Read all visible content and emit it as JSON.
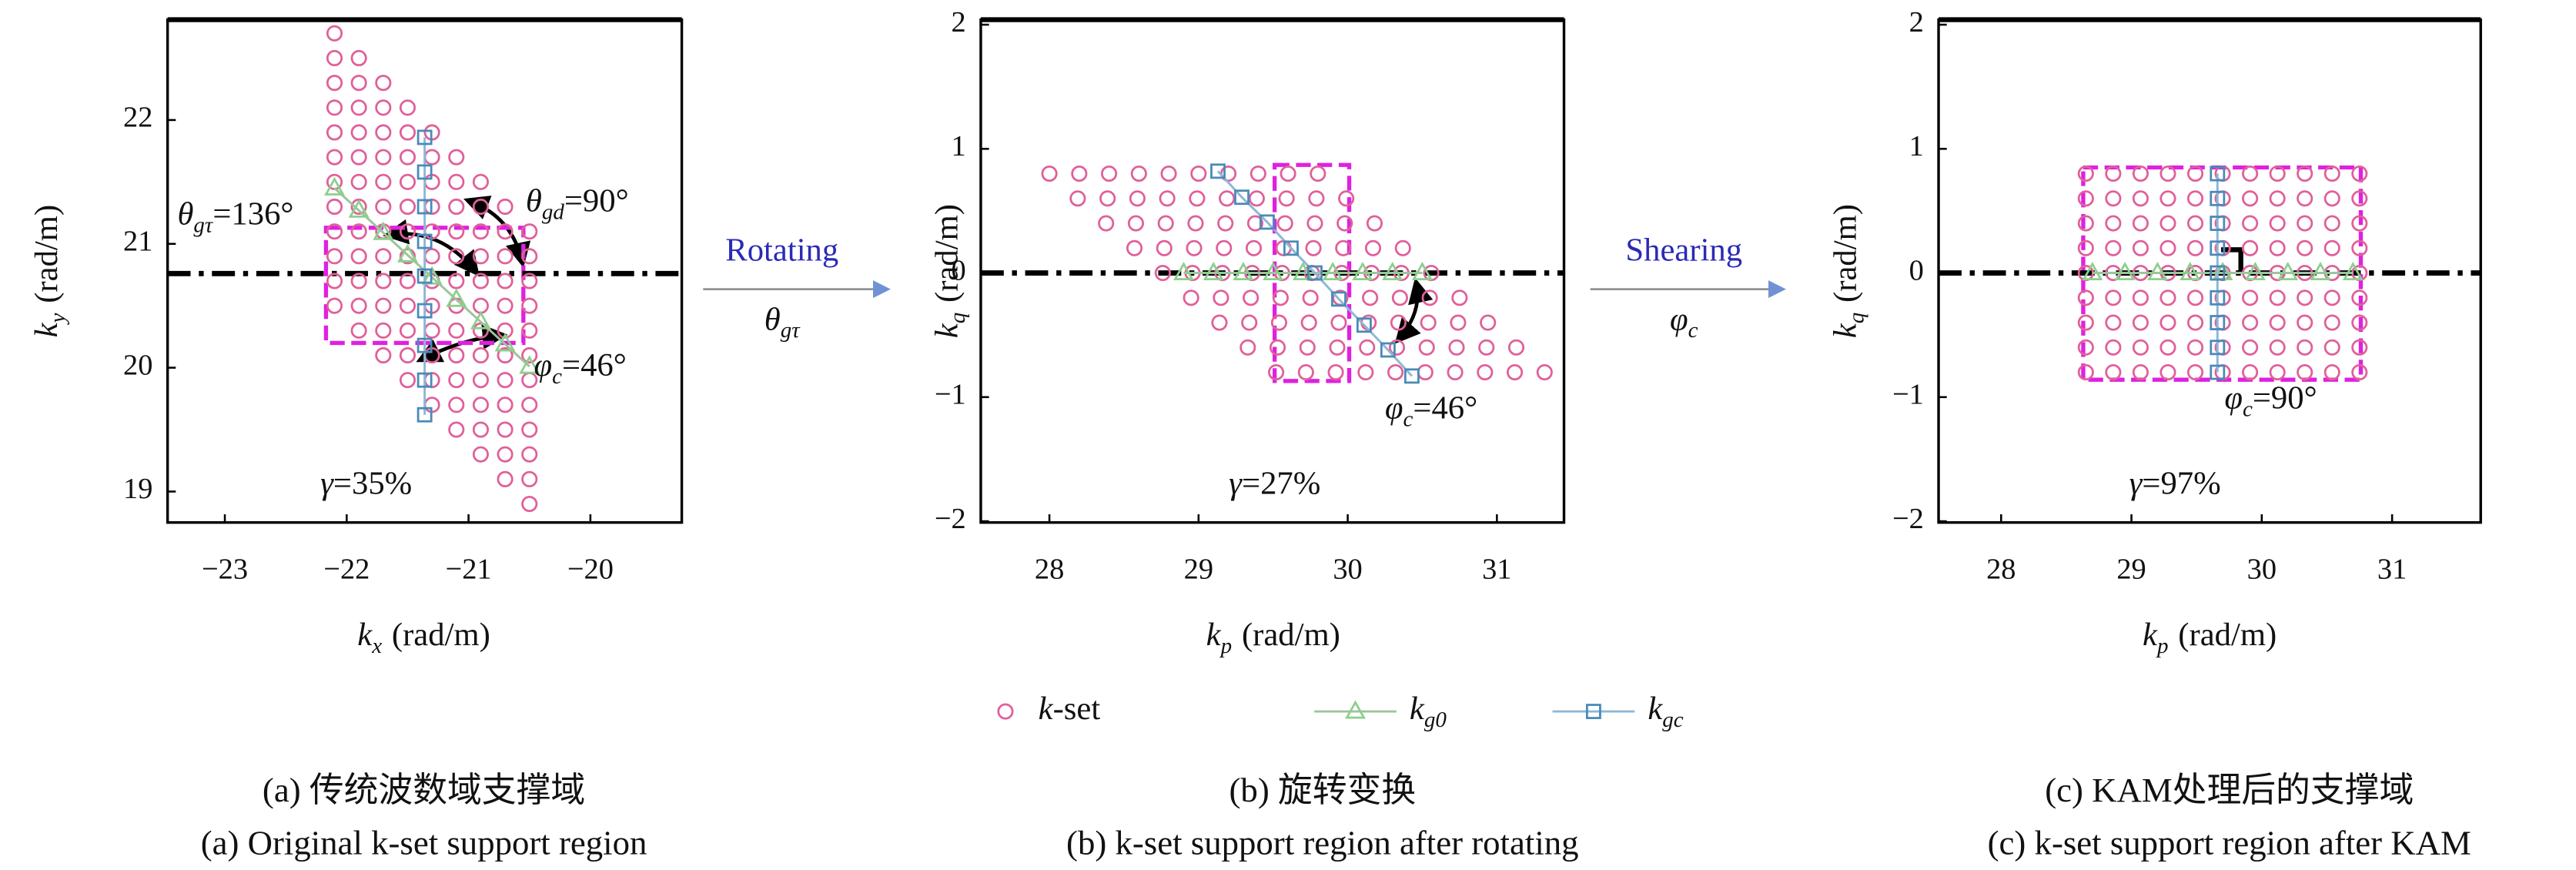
{
  "chart_data": [
    {
      "type": "scatter",
      "xlim": [
        -23.47,
        -19.25
      ],
      "ylim": [
        18.75,
        22.81
      ],
      "xticks": [
        {
          "value": -23,
          "label": "−23"
        },
        {
          "value": -22,
          "label": "−22"
        },
        {
          "value": -21,
          "label": "−21"
        },
        {
          "value": -20,
          "label": "−20"
        }
      ],
      "yticks": [
        19,
        20,
        21,
        22
      ],
      "xlabel": {
        "symbol": "k",
        "sub": "x",
        "text": "(rad/m)"
      },
      "ylabel": {
        "symbol": "k",
        "sub": "y",
        "text": "(rad/m)"
      },
      "reference_line": 20.76,
      "support_box": {
        "x": [
          -22.17,
          -20.55
        ],
        "y": [
          20.2,
          21.13
        ],
        "color": "#e020e0"
      },
      "annotations": [
        {
          "symbol": "θ",
          "sub": "gτ",
          "text": "=136°"
        },
        {
          "symbol": "θ",
          "sub": "gd",
          "text": "=90°"
        },
        {
          "symbol": "φ",
          "sub": "c",
          "text": "=46°"
        },
        {
          "symbol": "γ",
          "text": "=35%"
        }
      ],
      "series": [
        {
          "name": {
            "symbol": "k",
            "text": "-set"
          },
          "marker": "circle",
          "color": "#e0609a",
          "x": [
            -22.1,
            -22.1,
            -22.1,
            -22.1,
            -22.1,
            -22.1,
            -22.1,
            -22.1,
            -22.1,
            -22.1,
            -22.1,
            -22.1,
            -21.9,
            -21.9,
            -21.9,
            -21.9,
            -21.9,
            -21.9,
            -21.9,
            -21.9,
            -21.9,
            -21.9,
            -21.9,
            -21.9,
            -21.7,
            -21.7,
            -21.7,
            -21.7,
            -21.7,
            -21.7,
            -21.7,
            -21.7,
            -21.7,
            -21.7,
            -21.7,
            -21.7,
            -21.5,
            -21.5,
            -21.5,
            -21.5,
            -21.5,
            -21.5,
            -21.5,
            -21.5,
            -21.5,
            -21.5,
            -21.5,
            -21.5,
            -21.3,
            -21.3,
            -21.3,
            -21.3,
            -21.3,
            -21.3,
            -21.3,
            -21.3,
            -21.3,
            -21.3,
            -21.3,
            -21.3,
            -21.1,
            -21.1,
            -21.1,
            -21.1,
            -21.1,
            -21.1,
            -21.1,
            -21.1,
            -21.1,
            -21.1,
            -21.1,
            -21.1,
            -20.9,
            -20.9,
            -20.9,
            -20.9,
            -20.9,
            -20.9,
            -20.9,
            -20.9,
            -20.9,
            -20.9,
            -20.9,
            -20.9,
            -20.7,
            -20.7,
            -20.7,
            -20.7,
            -20.7,
            -20.7,
            -20.7,
            -20.7,
            -20.7,
            -20.7,
            -20.7,
            -20.7,
            -20.5,
            -20.5,
            -20.5,
            -20.5,
            -20.5,
            -20.5,
            -20.5,
            -20.5,
            -20.5,
            -20.5,
            -20.5,
            -20.5
          ],
          "values": [
            22.7,
            22.5,
            22.3,
            22.1,
            21.9,
            21.7,
            21.5,
            21.3,
            21.1,
            20.9,
            20.7,
            20.5,
            22.5,
            22.3,
            22.1,
            21.9,
            21.7,
            21.5,
            21.3,
            21.1,
            20.9,
            20.7,
            20.5,
            20.3,
            22.3,
            22.1,
            21.9,
            21.7,
            21.5,
            21.3,
            21.1,
            20.9,
            20.7,
            20.5,
            20.3,
            20.1,
            22.1,
            21.9,
            21.7,
            21.5,
            21.3,
            21.1,
            20.9,
            20.7,
            20.5,
            20.3,
            20.1,
            19.9,
            21.9,
            21.7,
            21.5,
            21.3,
            21.1,
            20.9,
            20.7,
            20.5,
            20.3,
            20.1,
            19.9,
            19.7,
            21.7,
            21.5,
            21.3,
            21.1,
            20.9,
            20.7,
            20.5,
            20.3,
            20.1,
            19.9,
            19.7,
            19.5,
            21.5,
            21.3,
            21.1,
            20.9,
            20.7,
            20.5,
            20.3,
            20.1,
            19.9,
            19.7,
            19.5,
            19.3,
            21.3,
            21.1,
            20.9,
            20.7,
            20.5,
            20.3,
            20.1,
            19.9,
            19.7,
            19.5,
            19.3,
            19.1,
            21.1,
            20.9,
            20.7,
            20.5,
            20.3,
            20.1,
            19.9,
            19.7,
            19.5,
            19.3,
            19.1,
            18.9
          ]
        },
        {
          "name": {
            "symbol": "k",
            "sub": "g0"
          },
          "marker": "triangle",
          "color": "#8ccf8c",
          "line_color": "#9cc49c",
          "x": [
            -22.1,
            -21.9,
            -21.7,
            -21.5,
            -21.3,
            -21.1,
            -20.9,
            -20.7,
            -20.5
          ],
          "values": [
            21.45,
            21.27,
            21.09,
            20.91,
            20.73,
            20.55,
            20.37,
            20.19,
            20.01
          ]
        },
        {
          "name": {
            "symbol": "k",
            "sub": "gc"
          },
          "marker": "square",
          "color": "#4a8ab8",
          "line_color": "#8db8d8",
          "x": [
            -21.36,
            -21.36,
            -21.36,
            -21.36,
            -21.36,
            -21.36,
            -21.36,
            -21.36,
            -21.36
          ],
          "values": [
            21.86,
            21.58,
            21.3,
            21.02,
            20.74,
            20.46,
            20.18,
            19.9,
            19.62
          ]
        }
      ]
    },
    {
      "type": "scatter",
      "xlim": [
        27.54,
        31.45
      ],
      "ylim": [
        -2.01,
        2.04
      ],
      "xticks": [
        28,
        29,
        30,
        31
      ],
      "yticks": [
        {
          "value": -2,
          "label": "−2"
        },
        {
          "value": -1,
          "label": "−1"
        },
        0,
        1,
        2
      ],
      "xlabel": {
        "symbol": "k",
        "sub": "p",
        "text": "(rad/m)"
      },
      "ylabel": {
        "symbol": "k",
        "sub": "q",
        "text": "(rad/m)"
      },
      "reference_line": 0,
      "support_box": {
        "x": [
          29.51,
          30.01
        ],
        "y": [
          -0.87,
          0.87
        ],
        "color": "#e020e0"
      },
      "annotations": [
        {
          "symbol": "φ",
          "sub": "c",
          "text": "=46°"
        },
        {
          "symbol": "γ",
          "text": "=27%"
        }
      ],
      "series": [
        {
          "marker": "circle",
          "color": "#e0609a",
          "x": [
            28.0,
            28.2,
            28.4,
            28.6,
            28.8,
            29.0,
            29.2,
            29.4,
            29.6,
            29.8,
            28.19,
            28.39,
            28.59,
            28.79,
            28.99,
            29.19,
            29.39,
            29.59,
            29.79,
            29.99,
            28.38,
            28.58,
            28.78,
            28.98,
            29.18,
            29.38,
            29.58,
            29.78,
            29.98,
            30.18,
            28.57,
            28.77,
            28.97,
            29.17,
            29.37,
            29.57,
            29.77,
            29.97,
            30.17,
            30.37,
            28.76,
            28.96,
            29.16,
            29.36,
            29.56,
            29.76,
            29.96,
            30.16,
            30.36,
            30.56,
            28.95,
            29.15,
            29.35,
            29.55,
            29.75,
            29.95,
            30.15,
            30.35,
            30.55,
            30.75,
            29.14,
            29.34,
            29.54,
            29.74,
            29.94,
            30.14,
            30.34,
            30.54,
            30.74,
            30.94,
            29.33,
            29.53,
            29.73,
            29.93,
            30.13,
            30.33,
            30.53,
            30.73,
            30.93,
            31.13,
            29.52,
            29.72,
            29.92,
            30.12,
            30.32,
            30.52,
            30.72,
            30.92,
            31.12,
            31.32
          ],
          "values": [
            0.8,
            0.8,
            0.8,
            0.8,
            0.8,
            0.8,
            0.8,
            0.8,
            0.8,
            0.8,
            0.6,
            0.6,
            0.6,
            0.6,
            0.6,
            0.6,
            0.6,
            0.6,
            0.6,
            0.6,
            0.4,
            0.4,
            0.4,
            0.4,
            0.4,
            0.4,
            0.4,
            0.4,
            0.4,
            0.4,
            0.2,
            0.2,
            0.2,
            0.2,
            0.2,
            0.2,
            0.2,
            0.2,
            0.2,
            0.2,
            0,
            0,
            0,
            0,
            0,
            0,
            0,
            0,
            0,
            0,
            -0.2,
            -0.2,
            -0.2,
            -0.2,
            -0.2,
            -0.2,
            -0.2,
            -0.2,
            -0.2,
            -0.2,
            -0.4,
            -0.4,
            -0.4,
            -0.4,
            -0.4,
            -0.4,
            -0.4,
            -0.4,
            -0.4,
            -0.4,
            -0.6,
            -0.6,
            -0.6,
            -0.6,
            -0.6,
            -0.6,
            -0.6,
            -0.6,
            -0.6,
            -0.6,
            -0.8,
            -0.8,
            -0.8,
            -0.8,
            -0.8,
            -0.8,
            -0.8,
            -0.8,
            -0.8,
            -0.8
          ]
        },
        {
          "marker": "triangle",
          "color": "#8ccf8c",
          "line_color": "#9cc49c",
          "x": [
            28.9,
            29.1,
            29.3,
            29.5,
            29.7,
            29.9,
            30.1,
            30.3,
            30.5
          ],
          "values": [
            0,
            0,
            0,
            0,
            0,
            0,
            0,
            0,
            0
          ]
        },
        {
          "marker": "square",
          "color": "#4a8ab8",
          "line_color": "#8db8d8",
          "x": [
            29.13,
            29.29,
            29.46,
            29.62,
            29.78,
            29.94,
            30.11,
            30.27,
            30.43
          ],
          "values": [
            0.82,
            0.61,
            0.41,
            0.2,
            0,
            -0.21,
            -0.42,
            -0.62,
            -0.83
          ]
        }
      ]
    },
    {
      "type": "scatter",
      "xlim": [
        27.52,
        31.68
      ],
      "ylim": [
        -2.01,
        2.04
      ],
      "xticks": [
        28,
        29,
        30,
        31
      ],
      "yticks": [
        {
          "value": -2,
          "label": "−2"
        },
        {
          "value": -1,
          "label": "−1"
        },
        0,
        1,
        2
      ],
      "xlabel": {
        "symbol": "k",
        "sub": "p",
        "text": "(rad/m)"
      },
      "ylabel": {
        "symbol": "k",
        "sub": "q",
        "text": "(rad/m)"
      },
      "reference_line": 0,
      "support_box": {
        "x": [
          28.63,
          30.76
        ],
        "y": [
          -0.86,
          0.85
        ],
        "color": "#e020e0"
      },
      "annotations": [
        {
          "symbol": "φ",
          "sub": "c",
          "text": "=90°"
        },
        {
          "symbol": "γ",
          "text": "=97%"
        }
      ],
      "series": [
        {
          "marker": "circle",
          "color": "#e0609a",
          "x": [
            28.65,
            28.86,
            29.07,
            29.28,
            29.49,
            29.7,
            29.91,
            30.12,
            30.33,
            30.54,
            30.75,
            28.65,
            28.86,
            29.07,
            29.28,
            29.49,
            29.7,
            29.91,
            30.12,
            30.33,
            30.54,
            30.75,
            28.65,
            28.86,
            29.07,
            29.28,
            29.49,
            29.7,
            29.91,
            30.12,
            30.33,
            30.54,
            30.75,
            28.65,
            28.86,
            29.07,
            29.28,
            29.49,
            29.7,
            29.91,
            30.12,
            30.33,
            30.54,
            30.75,
            28.65,
            28.86,
            29.07,
            29.28,
            29.49,
            29.7,
            29.91,
            30.12,
            30.33,
            30.54,
            30.75,
            28.65,
            28.86,
            29.07,
            29.28,
            29.49,
            29.7,
            29.91,
            30.12,
            30.33,
            30.54,
            30.75,
            28.65,
            28.86,
            29.07,
            29.28,
            29.49,
            29.7,
            29.91,
            30.12,
            30.33,
            30.54,
            30.75,
            28.65,
            28.86,
            29.07,
            29.28,
            29.49,
            29.7,
            29.91,
            30.12,
            30.33,
            30.54,
            30.75,
            28.65,
            28.86,
            29.07,
            29.28,
            29.49,
            29.7,
            29.91,
            30.12,
            30.33,
            30.54,
            30.75
          ],
          "values": [
            0.8,
            0.8,
            0.8,
            0.8,
            0.8,
            0.8,
            0.8,
            0.8,
            0.8,
            0.8,
            0.8,
            0.6,
            0.6,
            0.6,
            0.6,
            0.6,
            0.6,
            0.6,
            0.6,
            0.6,
            0.6,
            0.6,
            0.4,
            0.4,
            0.4,
            0.4,
            0.4,
            0.4,
            0.4,
            0.4,
            0.4,
            0.4,
            0.4,
            0.2,
            0.2,
            0.2,
            0.2,
            0.2,
            0.2,
            0.2,
            0.2,
            0.2,
            0.2,
            0.2,
            0,
            0,
            0,
            0,
            0,
            0,
            0,
            0,
            0,
            0,
            0,
            -0.2,
            -0.2,
            -0.2,
            -0.2,
            -0.2,
            -0.2,
            -0.2,
            -0.2,
            -0.2,
            -0.2,
            -0.2,
            -0.4,
            -0.4,
            -0.4,
            -0.4,
            -0.4,
            -0.4,
            -0.4,
            -0.4,
            -0.4,
            -0.4,
            -0.4,
            -0.6,
            -0.6,
            -0.6,
            -0.6,
            -0.6,
            -0.6,
            -0.6,
            -0.6,
            -0.6,
            -0.6,
            -0.6,
            -0.8,
            -0.8,
            -0.8,
            -0.8,
            -0.8,
            -0.8,
            -0.8,
            -0.8,
            -0.8,
            -0.8,
            -0.8
          ]
        },
        {
          "marker": "triangle",
          "color": "#8ccf8c",
          "line_color": "#9cc49c",
          "x": [
            28.7,
            28.95,
            29.2,
            29.45,
            29.7,
            29.95,
            30.2,
            30.45,
            30.7
          ],
          "values": [
            0,
            0,
            0,
            0,
            0,
            0,
            0,
            0,
            0
          ]
        },
        {
          "marker": "square",
          "color": "#4a8ab8",
          "line_color": "#8db8d8",
          "x": [
            29.66,
            29.66,
            29.66,
            29.66,
            29.66,
            29.66,
            29.66,
            29.66,
            29.66
          ],
          "values": [
            0.8,
            0.6,
            0.4,
            0.2,
            0,
            -0.2,
            -0.4,
            -0.6,
            -0.8
          ]
        }
      ]
    }
  ],
  "transforms": [
    {
      "label": "Rotating",
      "symbol": {
        "symbol": "θ",
        "sub": "gτ"
      }
    },
    {
      "label": "Shearing",
      "symbol": {
        "symbol": "φ",
        "sub": "c"
      }
    }
  ],
  "captions": [
    [
      "(a) 传统波数域支撑域",
      "(a) Original k-set support region"
    ],
    [
      "(b) 旋转变换",
      "(b) k-set support region after rotating"
    ],
    [
      "(c) KAM处理后的支撑域",
      "(c) k-set support region after KAM"
    ]
  ]
}
